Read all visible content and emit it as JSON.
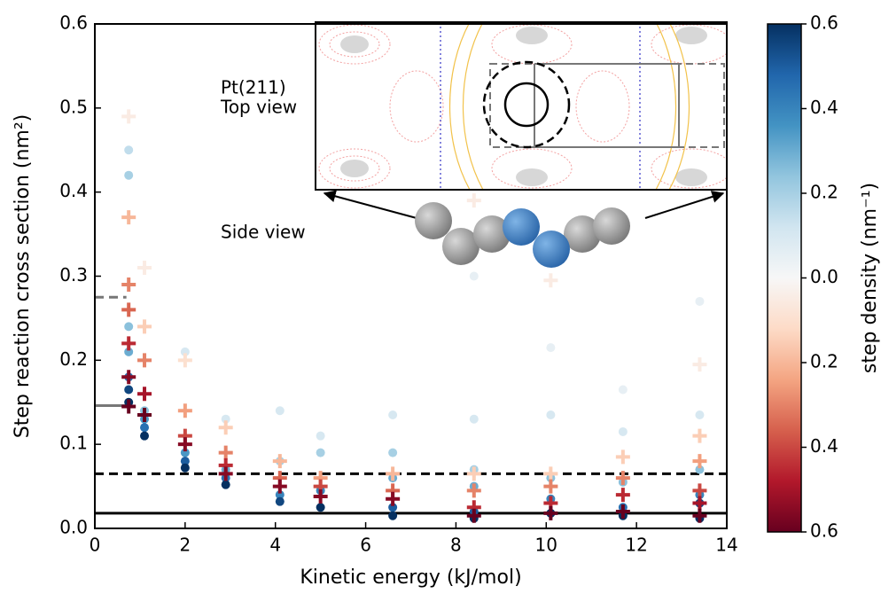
{
  "chart_data": {
    "type": "scatter",
    "xlabel": "Kinetic energy (kJ/mol)",
    "ylabel": "Step reaction cross section (nm²)",
    "xlim": [
      0,
      14
    ],
    "xticks": [
      0,
      2,
      4,
      6,
      8,
      10,
      12,
      14
    ],
    "ylim": [
      0,
      0.6
    ],
    "yticks": [
      {
        "value": 0,
        "label": "0.0"
      },
      0.1,
      0.2,
      0.3,
      0.4,
      0.5,
      0.6
    ],
    "colorbar": {
      "label": "step density (nm⁻¹)",
      "clim": [
        -0.6,
        0.6
      ],
      "ticks": [
        {
          "value": 0.6,
          "label": "0.6"
        },
        {
          "value": 0.4,
          "label": "0.4"
        },
        {
          "value": 0.2,
          "label": "0.2"
        },
        {
          "value": 0,
          "label": "0.0"
        },
        {
          "value": -0.2,
          "label": "0.2"
        },
        {
          "value": -0.4,
          "label": "0.4"
        },
        {
          "value": -0.6,
          "label": "0.6"
        }
      ],
      "colormap": [
        "#67001f",
        "#b2182b",
        "#d6604d",
        "#f4a582",
        "#fddbc7",
        "#f7f7f7",
        "#d1e5f0",
        "#92c5de",
        "#4393c3",
        "#2166ac",
        "#053061"
      ]
    },
    "series": [
      {
        "marker": "circle",
        "x": [
          0.75,
          0.75,
          0.75,
          0.75,
          0.75,
          0.75,
          0.75,
          1.1,
          1.1,
          1.1,
          1.1,
          2,
          2,
          2,
          2,
          2.9,
          2.9,
          2.9,
          2.9,
          4.1,
          4.1,
          4.1,
          4.1,
          5,
          5,
          5,
          5,
          6.6,
          6.6,
          6.6,
          6.6,
          6.6,
          8.4,
          8.4,
          8.4,
          8.4,
          8.4,
          8.4,
          10.1,
          10.1,
          10.1,
          10.1,
          10.1,
          11.7,
          11.7,
          11.7,
          11.7,
          11.7,
          13.4,
          13.4,
          13.4,
          13.4,
          13.4,
          13.4
        ],
        "y": [
          0.45,
          0.42,
          0.24,
          0.21,
          0.18,
          0.165,
          0.15,
          0.14,
          0.13,
          0.12,
          0.11,
          0.21,
          0.09,
          0.08,
          0.072,
          0.13,
          0.07,
          0.06,
          0.052,
          0.14,
          0.08,
          0.04,
          0.032,
          0.11,
          0.09,
          0.045,
          0.025,
          0.135,
          0.09,
          0.06,
          0.025,
          0.015,
          0.3,
          0.13,
          0.07,
          0.05,
          0.02,
          0.012,
          0.215,
          0.135,
          0.06,
          0.035,
          0.018,
          0.165,
          0.115,
          0.055,
          0.025,
          0.015,
          0.27,
          0.135,
          0.07,
          0.04,
          0.03,
          0.012
        ],
        "c": [
          0.15,
          0.2,
          0.25,
          0.3,
          0.45,
          0.55,
          0.6,
          0.25,
          0.35,
          0.45,
          0.6,
          0.1,
          0.35,
          0.5,
          0.6,
          0.1,
          0.3,
          0.45,
          0.6,
          0.1,
          0.2,
          0.4,
          0.55,
          0.1,
          0.2,
          0.4,
          0.6,
          0.1,
          0.2,
          0.3,
          0.5,
          0.6,
          0.05,
          0.1,
          0.2,
          0.3,
          0.5,
          0.6,
          0.05,
          0.1,
          0.25,
          0.4,
          0.6,
          0.05,
          0.1,
          0.25,
          0.45,
          0.6,
          0.05,
          0.1,
          0.25,
          0.4,
          0.55,
          0.6
        ]
      },
      {
        "marker": "plus",
        "x": [
          0.75,
          0.75,
          0.75,
          0.75,
          0.75,
          0.75,
          0.75,
          1.1,
          1.1,
          1.1,
          1.1,
          1.1,
          2,
          2,
          2,
          2,
          2.9,
          2.9,
          2.9,
          2.9,
          4.1,
          4.1,
          4.1,
          5,
          5,
          5,
          6.6,
          6.6,
          6.6,
          8.4,
          8.4,
          8.4,
          8.4,
          8.4,
          10.1,
          10.1,
          10.1,
          10.1,
          10.1,
          11.7,
          11.7,
          11.7,
          11.7,
          13.4,
          13.4,
          13.4,
          13.4,
          13.4,
          13.4
        ],
        "y": [
          0.49,
          0.37,
          0.29,
          0.26,
          0.22,
          0.18,
          0.145,
          0.31,
          0.24,
          0.2,
          0.16,
          0.135,
          0.2,
          0.14,
          0.11,
          0.1,
          0.12,
          0.09,
          0.075,
          0.065,
          0.08,
          0.06,
          0.05,
          0.06,
          0.05,
          0.038,
          0.065,
          0.045,
          0.035,
          0.39,
          0.065,
          0.045,
          0.025,
          0.015,
          0.295,
          0.065,
          0.05,
          0.03,
          0.018,
          0.085,
          0.06,
          0.04,
          0.02,
          0.195,
          0.11,
          0.08,
          0.045,
          0.03,
          0.015
        ],
        "c": [
          -0.05,
          -0.2,
          -0.3,
          -0.35,
          -0.45,
          -0.55,
          -0.6,
          -0.05,
          -0.15,
          -0.3,
          -0.5,
          -0.6,
          -0.1,
          -0.25,
          -0.4,
          -0.55,
          -0.15,
          -0.3,
          -0.45,
          -0.55,
          -0.2,
          -0.35,
          -0.55,
          -0.25,
          -0.4,
          -0.55,
          -0.2,
          -0.35,
          -0.55,
          -0.05,
          -0.15,
          -0.3,
          -0.45,
          -0.6,
          -0.05,
          -0.15,
          -0.3,
          -0.45,
          -0.6,
          -0.15,
          -0.3,
          -0.45,
          -0.6,
          -0.05,
          -0.15,
          -0.25,
          -0.4,
          -0.5,
          -0.6
        ]
      }
    ],
    "lines": [
      {
        "x": [
          0,
          14
        ],
        "y": 0.065,
        "style": "dashed",
        "color": "#000000"
      },
      {
        "x": [
          0,
          14
        ],
        "y": 0.018,
        "style": "solid",
        "color": "#000000"
      },
      {
        "x": [
          0,
          0.7
        ],
        "y": 0.275,
        "style": "dashed",
        "color": "#777777"
      },
      {
        "x": [
          0,
          0.7
        ],
        "y": 0.146,
        "style": "solid",
        "color": "#777777"
      }
    ],
    "inset": {
      "top_label": [
        "Pt(211)",
        "Top view"
      ],
      "side_label": "Side view"
    }
  }
}
